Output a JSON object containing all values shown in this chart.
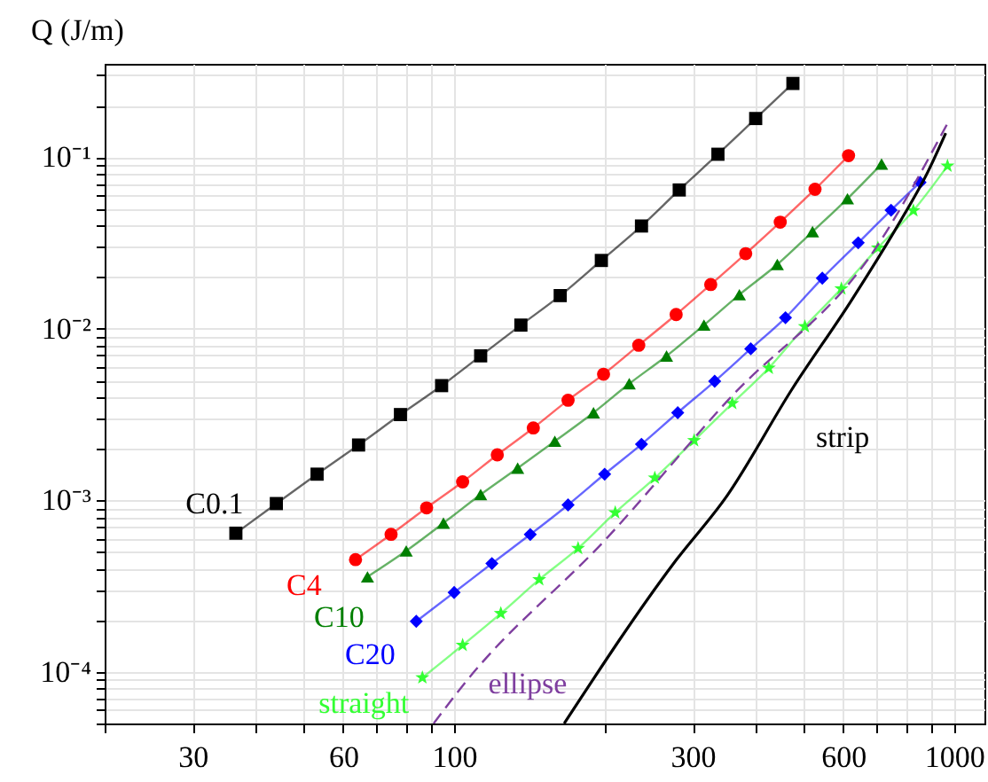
{
  "chart_data": {
    "type": "line",
    "ylabel": "Q (J/m)",
    "log": "xy",
    "grid": true,
    "xlim": [
      20,
      1150
    ],
    "ylim": [
      5e-05,
      0.35
    ],
    "xticks": [
      {
        "value": 20,
        "label": null
      },
      30,
      {
        "value": 40,
        "label": null
      },
      {
        "value": 50,
        "label": null
      },
      60,
      {
        "value": 70,
        "label": null
      },
      {
        "value": 80,
        "label": null
      },
      {
        "value": 90,
        "label": null
      },
      100,
      {
        "value": 200,
        "label": null
      },
      300,
      {
        "value": 400,
        "label": null
      },
      {
        "value": 500,
        "label": null
      },
      600,
      {
        "value": 700,
        "label": null
      },
      {
        "value": 800,
        "label": null
      },
      {
        "value": 900,
        "label": null
      },
      1000
    ],
    "yticks": [
      {
        "value": 5e-05,
        "label": null
      },
      {
        "value": 6e-05,
        "label": null
      },
      {
        "value": 7e-05,
        "label": null
      },
      {
        "value": 8e-05,
        "label": null
      },
      {
        "value": 9e-05,
        "label": null
      },
      {
        "value": 0.0001,
        "label": "10⁻⁴"
      },
      {
        "value": 0.0002,
        "label": null
      },
      {
        "value": 0.0003,
        "label": null
      },
      {
        "value": 0.0004,
        "label": null
      },
      {
        "value": 0.0005,
        "label": null
      },
      {
        "value": 0.0006,
        "label": null
      },
      {
        "value": 0.0007,
        "label": null
      },
      {
        "value": 0.0008,
        "label": null
      },
      {
        "value": 0.0009,
        "label": null
      },
      {
        "value": 0.001,
        "label": "10⁻³"
      },
      {
        "value": 0.002,
        "label": null
      },
      {
        "value": 0.003,
        "label": null
      },
      {
        "value": 0.004,
        "label": null
      },
      {
        "value": 0.005,
        "label": null
      },
      {
        "value": 0.006,
        "label": null
      },
      {
        "value": 0.007,
        "label": null
      },
      {
        "value": 0.008,
        "label": null
      },
      {
        "value": 0.009,
        "label": null
      },
      {
        "value": 0.01,
        "label": "10⁻²"
      },
      {
        "value": 0.02,
        "label": null
      },
      {
        "value": 0.03,
        "label": null
      },
      {
        "value": 0.04,
        "label": null
      },
      {
        "value": 0.05,
        "label": null
      },
      {
        "value": 0.06,
        "label": null
      },
      {
        "value": 0.07,
        "label": null
      },
      {
        "value": 0.08,
        "label": null
      },
      {
        "value": 0.09,
        "label": null
      },
      {
        "value": 0.1,
        "label": "10⁻¹"
      },
      {
        "value": 0.2,
        "label": null
      },
      {
        "value": 0.3,
        "label": null
      }
    ],
    "series": [
      {
        "name": "C0.1",
        "color": "#000000",
        "marker": "square",
        "x": [
          476,
          401,
          337,
          282,
          237,
          197,
          163,
          136,
          113,
          94.4,
          78.1,
          64.4,
          53.2,
          44.1,
          36.6
        ],
        "values": [
          0.269,
          0.168,
          0.104,
          0.0644,
          0.0397,
          0.025,
          0.0156,
          0.0105,
          0.00695,
          0.00466,
          0.00316,
          0.0021,
          0.00142,
          0.000957,
          0.000643
        ]
      },
      {
        "name": "C4",
        "color": "#ff0000",
        "marker": "circle",
        "x": [
          615,
          527,
          449,
          383,
          326,
          278,
          234,
          199,
          169,
          144,
          122,
          104,
          88.1,
          74.8,
          63.5
        ],
        "values": [
          0.102,
          0.065,
          0.0418,
          0.0274,
          0.0181,
          0.0121,
          0.00801,
          0.00543,
          0.00383,
          0.00264,
          0.00184,
          0.00128,
          0.000903,
          0.000633,
          0.000451
        ]
      },
      {
        "name": "C10",
        "color": "#007f00",
        "marker": "triangle",
        "x": [
          716,
          612,
          521,
          443,
          372,
          316,
          266,
          224,
          190,
          159,
          134,
          113,
          95.2,
          80.2,
          67.1
        ],
        "values": [
          0.0912,
          0.0573,
          0.0368,
          0.0237,
          0.0158,
          0.0105,
          0.00694,
          0.00478,
          0.00324,
          0.00221,
          0.00154,
          0.00108,
          0.000736,
          0.000507,
          0.000358
        ]
      },
      {
        "name": "C20",
        "color": "#0000ff",
        "marker": "diamond",
        "x": [
          855,
          748,
          643,
          545,
          460,
          392,
          332,
          280,
          237,
          200,
          169,
          142,
          119,
          100,
          84
        ],
        "values": [
          0.0713,
          0.0491,
          0.0317,
          0.0197,
          0.0116,
          0.00764,
          0.00494,
          0.00324,
          0.00212,
          0.00142,
          0.00094,
          0.000632,
          0.000428,
          0.00029,
          0.000197
        ]
      },
      {
        "name": "straight",
        "color": "#33ff33",
        "marker": "star",
        "x": [
          970,
          829,
          704,
          595,
          503,
          426,
          360,
          302,
          252,
          210,
          177,
          148,
          124,
          104,
          86.4
        ],
        "values": [
          0.0889,
          0.0488,
          0.0296,
          0.0171,
          0.0103,
          0.0059,
          0.00367,
          0.00223,
          0.00135,
          0.000847,
          0.000525,
          0.000345,
          0.000219,
          0.000143,
          9.25e-05
        ]
      },
      {
        "name": "ellipse",
        "color": "#7f3f9f",
        "marker": "none",
        "line_style": "dashed",
        "x": [
          91,
          104,
          204,
          352,
          705,
          973
        ],
        "values": [
          5e-05,
          8.3e-05,
          0.00062,
          0.0038,
          0.031,
          0.16
        ]
      },
      {
        "name": "strip",
        "color": "#000000",
        "marker": "none",
        "line_style": "solid",
        "x": [
          166,
          275,
          352,
          474,
          622,
          774,
          887,
          962
        ],
        "values": [
          5e-05,
          0.00043,
          0.00107,
          0.00444,
          0.0145,
          0.0406,
          0.0826,
          0.138
        ]
      }
    ]
  }
}
